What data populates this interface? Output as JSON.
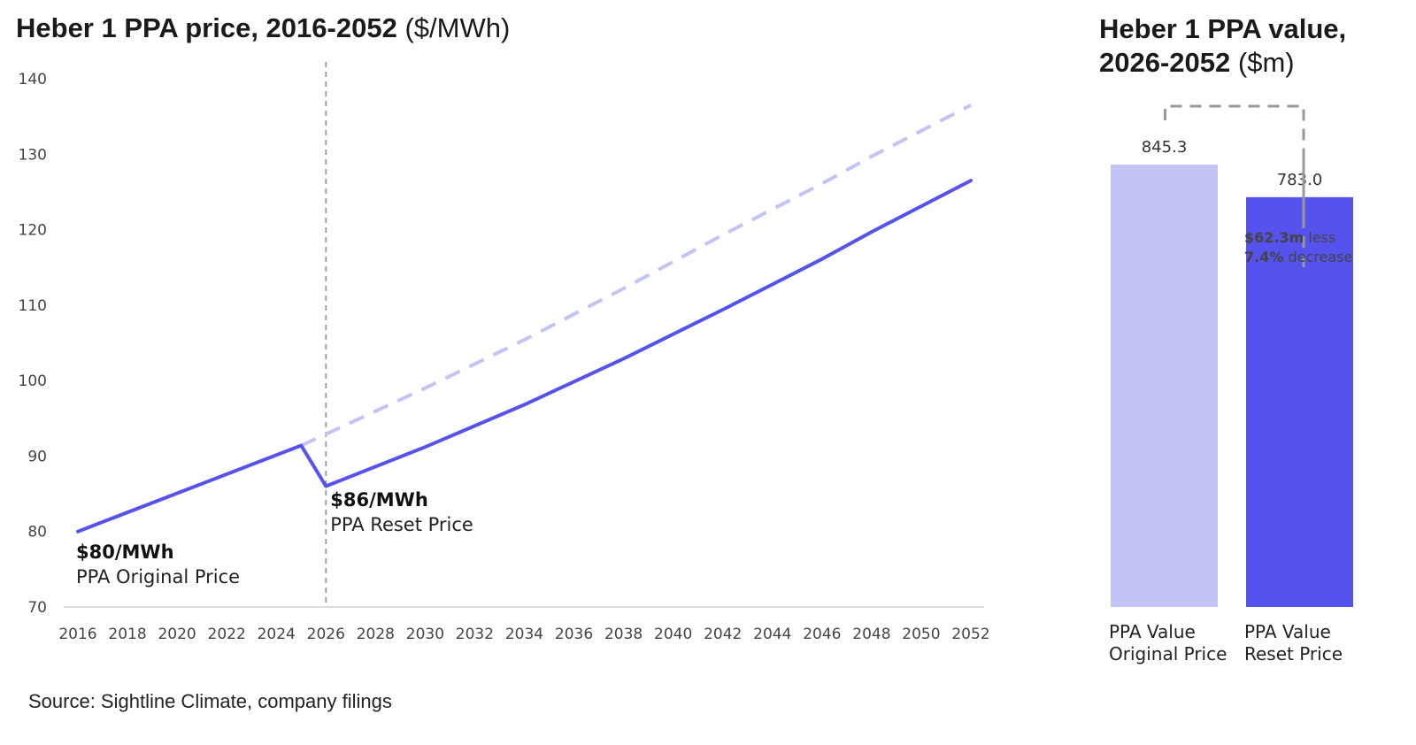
{
  "left_title": {
    "main": "Heber 1 PPA price, 2016-2052",
    "unit": "($/MWh)"
  },
  "right_title": {
    "line1": "Heber 1 PPA value,",
    "line2_main": "2026-2052",
    "line2_unit": "($m)"
  },
  "source": "Source: Sightline Climate, company filings",
  "colors": {
    "reset": "#5552ee",
    "original": "#c4c3f6",
    "marker": "#999999"
  },
  "chart_data": [
    {
      "type": "line",
      "title": "Heber 1 PPA price, 2016-2052 ($/MWh)",
      "ylim": [
        70,
        140
      ],
      "yticks": [
        70,
        80,
        90,
        100,
        110,
        120,
        130,
        140
      ],
      "xlim": [
        2016,
        2052
      ],
      "xticks": [
        2016,
        2018,
        2020,
        2022,
        2024,
        2026,
        2028,
        2030,
        2032,
        2034,
        2036,
        2038,
        2040,
        2042,
        2044,
        2046,
        2048,
        2050,
        2052
      ],
      "grid": false,
      "marker_year": 2026,
      "series": [
        {
          "style": "solid",
          "points": [
            [
              2016,
              80.0
            ],
            [
              2025,
              91.4
            ],
            [
              2026,
              86.0
            ],
            [
              2030,
              91.2
            ],
            [
              2034,
              96.8
            ],
            [
              2038,
              102.9
            ],
            [
              2042,
              109.4
            ],
            [
              2046,
              116.1
            ],
            [
              2048,
              119.7
            ],
            [
              2052,
              126.5
            ]
          ]
        },
        {
          "style": "dashed",
          "points": [
            [
              2025,
              91.4
            ],
            [
              2026,
              92.9
            ],
            [
              2030,
              99.0
            ],
            [
              2034,
              105.4
            ],
            [
              2038,
              112.2
            ],
            [
              2042,
              119.3
            ],
            [
              2046,
              126.1
            ],
            [
              2048,
              129.7
            ],
            [
              2052,
              136.5
            ]
          ]
        }
      ],
      "annotations": [
        {
          "x": 2016,
          "bold": "$80/MWh",
          "text": "PPA Original Price"
        },
        {
          "x": 2026,
          "bold": "$86/MWh",
          "text": "PPA Reset Price"
        }
      ]
    },
    {
      "type": "bar",
      "title": "Heber 1 PPA value, 2026-2052 ($m)",
      "categories": [
        {
          "line1": "PPA Value",
          "line2": "Original Price"
        },
        {
          "line1": "PPA Value",
          "line2": "Reset Price"
        }
      ],
      "values": [
        845.3,
        783.0
      ],
      "value_labels": [
        "845.3",
        "783.0"
      ],
      "difference": {
        "bold1": "$62.3m",
        "text1": "less",
        "bold2": "7.4%",
        "text2": "decrease"
      }
    }
  ]
}
